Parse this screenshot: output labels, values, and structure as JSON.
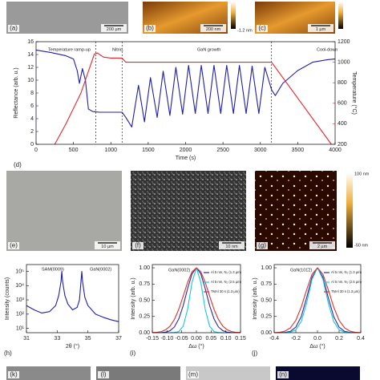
{
  "images": [
    {
      "label": "(a)",
      "scale": "200 µm"
    },
    {
      "label": "(b)",
      "scale": "200 nm",
      "colorbar": "-1.2 nm"
    },
    {
      "label": "(c)",
      "scale": "1 µm"
    },
    {
      "label": "(e)",
      "scale": "10 µm"
    },
    {
      "label": "(f)",
      "scale": "10 nm"
    },
    {
      "label": "(g)",
      "scale": "2 µm",
      "colorbar_top": "100 nm",
      "colorbar": "-50 nm"
    },
    {
      "label": "(k)"
    },
    {
      "label": "(l)"
    },
    {
      "label": "(m)"
    },
    {
      "label": "(n)"
    }
  ],
  "chart_data": [
    {
      "type": "line",
      "label": "(d)",
      "x_label": "Time (s)",
      "y_label": "Reflectance (arb. u.)",
      "y2_label": "Temperature (°C)",
      "annotations": [
        "Temperature ramp-up",
        "Nitrid.",
        "GaN growth",
        "Cool-down"
      ],
      "phase_boundaries": [
        800,
        1150,
        3150
      ],
      "xlim": [
        0,
        4000
      ],
      "xticks": [
        0,
        500,
        1000,
        1500,
        2000,
        2500,
        3000,
        3500,
        4000
      ],
      "ylim": [
        0,
        16
      ],
      "yticks": [
        0,
        2,
        4,
        6,
        8,
        10,
        12,
        14,
        16
      ],
      "y2lim": [
        200,
        1200
      ],
      "y2ticks": [
        200,
        400,
        600,
        800,
        1000,
        1200
      ],
      "series": [
        {
          "color": "#1f1fa8",
          "axis": "y",
          "x": [
            0,
            200,
            400,
            500,
            550,
            580,
            620,
            660,
            700,
            760,
            850,
            1000,
            1150,
            1200,
            1280,
            1370,
            1450,
            1530,
            1620,
            1700,
            1790,
            1870,
            1960,
            2040,
            2130,
            2210,
            2300,
            2380,
            2470,
            2550,
            2640,
            2720,
            2810,
            2890,
            2980,
            3060,
            3150,
            3200,
            3300,
            3500,
            3700,
            3900,
            4000
          ],
          "values": [
            14.7,
            14.3,
            13.8,
            13.3,
            11.5,
            9.5,
            11.8,
            10.0,
            5.5,
            5.1,
            5.0,
            5.0,
            5.0,
            4.2,
            2.7,
            9.2,
            3.5,
            10.4,
            4.2,
            11.4,
            4.5,
            12.0,
            4.7,
            12.3,
            4.8,
            12.3,
            4.8,
            12.3,
            4.8,
            12.3,
            4.8,
            12.3,
            4.8,
            12.2,
            4.8,
            12.0,
            8.5,
            7.6,
            9.5,
            11.5,
            12.8,
            13.2,
            13.3
          ]
        },
        {
          "color": "#e8262b",
          "axis": "y2",
          "x": [
            250,
            400,
            600,
            780,
            820,
            900,
            1000,
            1150,
            1200,
            3150,
            3950
          ],
          "values": [
            200,
            400,
            700,
            1080,
            1090,
            1050,
            1040,
            1040,
            1000,
            1000,
            200
          ]
        }
      ]
    },
    {
      "type": "line",
      "label": "(h)",
      "x_label": "2θ (°)",
      "y_label": "Intensity (counts)",
      "log_y": true,
      "annotations": [
        "SAM(0009)",
        "GaN(0002)"
      ],
      "xlim": [
        31,
        37
      ],
      "xticks": [
        31,
        33,
        35,
        37
      ],
      "ylim": [
        5,
        300000
      ],
      "yticks": [
        {
          "value": 10,
          "label": "10¹"
        },
        {
          "value": 100,
          "label": "10²"
        },
        {
          "value": 1000,
          "label": "10³"
        },
        {
          "value": 10000,
          "label": "10⁴"
        },
        {
          "value": 100000,
          "label": "10⁵"
        }
      ],
      "series": [
        {
          "color": "#1f1fa8",
          "x": [
            31,
            31.5,
            32,
            32.5,
            32.9,
            33.1,
            33.25,
            33.3,
            33.35,
            33.5,
            33.7,
            34,
            34.3,
            34.45,
            34.55,
            34.6,
            34.65,
            34.8,
            35,
            35.5,
            36,
            36.5,
            37
          ],
          "values": [
            400,
            200,
            120,
            150,
            400,
            2000,
            20000,
            100000,
            20000,
            2000,
            500,
            200,
            300,
            1000,
            20000,
            100000,
            20000,
            1500,
            400,
            100,
            60,
            40,
            30
          ]
        }
      ]
    },
    {
      "type": "line",
      "label": "(i)",
      "x_label": "Δω (°)",
      "y_label": "Intensity (arb. u.)",
      "annotations": [
        "GaN(0002)"
      ],
      "xlim": [
        -0.15,
        0.15
      ],
      "xticks": [
        -0.15,
        {
          "value": -0.1,
          "label": "-0.10"
        },
        -0.05,
        {
          "value": 0,
          "label": "0.00"
        },
        0.05,
        {
          "value": 0.1,
          "label": "0.10"
        },
        0.15
      ],
      "ylim": [
        0,
        1.05
      ],
      "yticks": [
        {
          "value": 0,
          "label": "0.00"
        },
        0.25,
        {
          "value": 0.5,
          "label": "0.50"
        },
        0.75,
        {
          "value": 1,
          "label": "1.00"
        }
      ],
      "series": [
        {
          "name": "Al 5 nm, N₂ (1.3 µm)",
          "color": "#2a2aa0",
          "x": [
            -0.15,
            -0.135,
            -0.12,
            -0.105,
            -0.09,
            -0.075,
            -0.06,
            -0.045,
            -0.03,
            -0.015,
            0,
            0.015,
            0.03,
            0.045,
            0.06,
            0.075,
            0.09,
            0.105,
            0.12,
            0.135,
            0.15
          ],
          "values": [
            0,
            0.0004,
            0.002,
            0.0085,
            0.03,
            0.088,
            0.211,
            0.416,
            0.678,
            0.907,
            1,
            0.907,
            0.678,
            0.416,
            0.211,
            0.088,
            0.03,
            0.0085,
            0.002,
            0.0004,
            0
          ]
        },
        {
          "name": "Al 5 nm, N₂ (2.5 µm)",
          "color": "#19c5e0",
          "x": [
            -0.15,
            -0.135,
            -0.12,
            -0.105,
            -0.09,
            -0.075,
            -0.06,
            -0.045,
            -0.03,
            -0.015,
            0,
            0.015,
            0.03,
            0.045,
            0.06,
            0.075,
            0.09,
            0.105,
            0.12,
            0.135,
            0.15
          ],
          "values": [
            0,
            0,
            0,
            0,
            0,
            0.002,
            0.017,
            0.1,
            0.36,
            0.775,
            1,
            0.775,
            0.36,
            0.1,
            0.017,
            0.002,
            0,
            0,
            0,
            0,
            0
          ]
        },
        {
          "name": "TMAl 30 s (1.3 µm)",
          "color": "#e0302a",
          "x": [
            -0.15,
            -0.135,
            -0.12,
            -0.105,
            -0.09,
            -0.075,
            -0.06,
            -0.045,
            -0.03,
            -0.015,
            0,
            0.015,
            0.03,
            0.045,
            0.06,
            0.075,
            0.09,
            0.105,
            0.12,
            0.135,
            0.15
          ],
          "values": [
            0.002,
            0.006,
            0.017,
            0.044,
            0.1,
            0.203,
            0.36,
            0.563,
            0.775,
            0.938,
            1,
            0.938,
            0.775,
            0.563,
            0.36,
            0.203,
            0.1,
            0.044,
            0.017,
            0.006,
            0.002
          ]
        }
      ]
    },
    {
      "type": "line",
      "label": "(j)",
      "x_label": "Δω (°)",
      "y_label": "Intensity (arb. u.)",
      "annotations": [
        "GaN(101̄2)"
      ],
      "xlim": [
        -0.4,
        0.4
      ],
      "xticks": [
        -0.4,
        -0.2,
        {
          "value": 0,
          "label": "0.0"
        },
        0.2,
        0.4
      ],
      "ylim": [
        0,
        1.05
      ],
      "yticks": [
        {
          "value": 0,
          "label": "0.00"
        },
        0.25,
        {
          "value": 0.5,
          "label": "0.50"
        },
        0.75,
        {
          "value": 1,
          "label": "1.00"
        }
      ],
      "series": [
        {
          "name": "Al 5 nm, N₂ (1.3 µm)",
          "color": "#2a2aa0",
          "x": [
            -0.4,
            -0.35,
            -0.3,
            -0.25,
            -0.2,
            -0.15,
            -0.1,
            -0.05,
            0,
            0.05,
            0.1,
            0.15,
            0.2,
            0.25,
            0.3,
            0.35,
            0.4
          ],
          "values": [
            0,
            0.001,
            0.004,
            0.021,
            0.085,
            0.249,
            0.539,
            0.857,
            1,
            0.857,
            0.539,
            0.249,
            0.085,
            0.021,
            0.004,
            0.001,
            0
          ]
        },
        {
          "name": "Al 5 nm, N₂ (2.5 µm)",
          "color": "#19c5e0",
          "x": [
            -0.4,
            -0.35,
            -0.3,
            -0.25,
            -0.2,
            -0.15,
            -0.1,
            -0.05,
            0,
            0.05,
            0.1,
            0.15,
            0.2,
            0.25,
            0.3,
            0.35,
            0.4
          ],
          "values": [
            0,
            0,
            0.001,
            0.008,
            0.044,
            0.172,
            0.458,
            0.823,
            1,
            0.823,
            0.458,
            0.172,
            0.044,
            0.008,
            0.001,
            0,
            0
          ]
        },
        {
          "name": "TMAl 30 s (1.3 µm)",
          "color": "#e0302a",
          "x": [
            -0.4,
            -0.35,
            -0.3,
            -0.25,
            -0.2,
            -0.15,
            -0.1,
            -0.05,
            0,
            0.05,
            0.1,
            0.15,
            0.2,
            0.25,
            0.3,
            0.35,
            0.4
          ],
          "values": [
            0.001,
            0.006,
            0.024,
            0.076,
            0.191,
            0.395,
            0.662,
            0.902,
            1,
            0.902,
            0.662,
            0.395,
            0.191,
            0.076,
            0.024,
            0.006,
            0.001
          ]
        }
      ]
    }
  ]
}
